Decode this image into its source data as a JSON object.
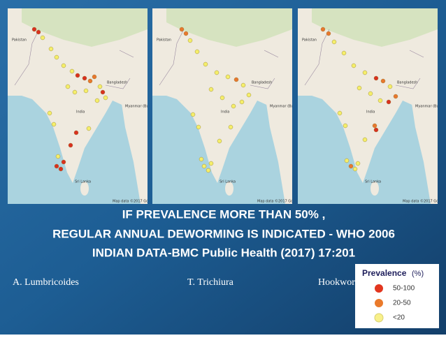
{
  "title_lines": [
    "IF PREVALENCE MORE THAN 50% ,",
    "REGULAR ANNUAL DEWORMING IS INDICATED - WHO 2006",
    "INDIAN DATA-BMC Public Health (2017) 17:201"
  ],
  "maps": [
    {
      "caption": "A. Lumbricoides"
    },
    {
      "caption": "T. Trichiura"
    },
    {
      "caption": "Hookworm"
    }
  ],
  "map_labels": {
    "pakistan": "Pakistan",
    "india": "India",
    "bangladesh": "Bangladesh",
    "myanmar": "Myanmar (Burma)",
    "sri_lanka": "Sri Lanka",
    "credit": "Map data ©2017 Google"
  },
  "legend": {
    "title": "Prevalence",
    "unit": "(%)",
    "items": [
      "50-100",
      "20-50",
      "<20"
    ]
  }
}
